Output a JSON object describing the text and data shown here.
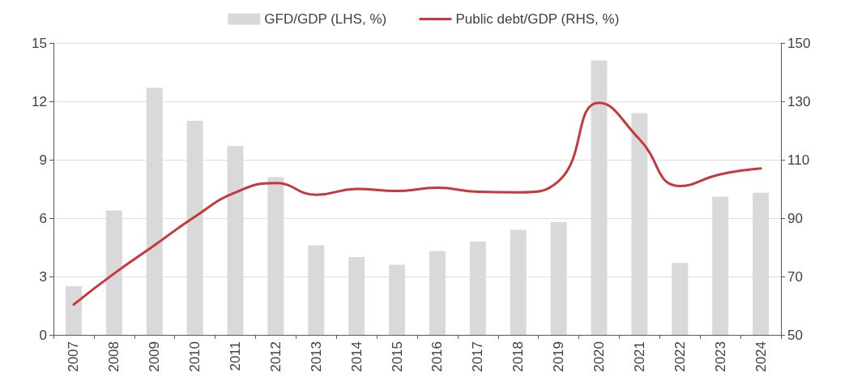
{
  "chart_data": {
    "type": "bar",
    "categories": [
      "2007",
      "2008",
      "2009",
      "2010",
      "2011",
      "2012",
      "2013",
      "2014",
      "2015",
      "2016",
      "2017",
      "2018",
      "2019",
      "2020",
      "2021",
      "2022",
      "2023",
      "2024"
    ],
    "series": [
      {
        "name": "GFD/GDP (LHS, %)",
        "color": "#d9d9d9",
        "values": [
          2.5,
          6.4,
          12.7,
          11.0,
          9.7,
          8.1,
          4.6,
          4.0,
          3.6,
          4.3,
          4.8,
          5.4,
          5.8,
          14.1,
          11.4,
          3.7,
          7.1,
          7.3
        ]
      },
      {
        "name": "Public debt/GDP (RHS, %)",
        "type": "line",
        "axis": "y2",
        "color": "#c8373c",
        "values": [
          60.4,
          71,
          80.7,
          90.5,
          98.8,
          102,
          98,
          100,
          99.3,
          100.4,
          99,
          98.8,
          102.7,
          129.5,
          117,
          101,
          105,
          107
        ]
      }
    ],
    "ylim": [
      0,
      15
    ],
    "yticks": [
      0,
      3,
      6,
      9,
      12,
      15
    ],
    "y2lim": [
      50,
      150
    ],
    "y2ticks": [
      50,
      70,
      90,
      110,
      130,
      150
    ],
    "grid": "y",
    "legend": "top",
    "marker": "none",
    "line_style": "solid"
  }
}
